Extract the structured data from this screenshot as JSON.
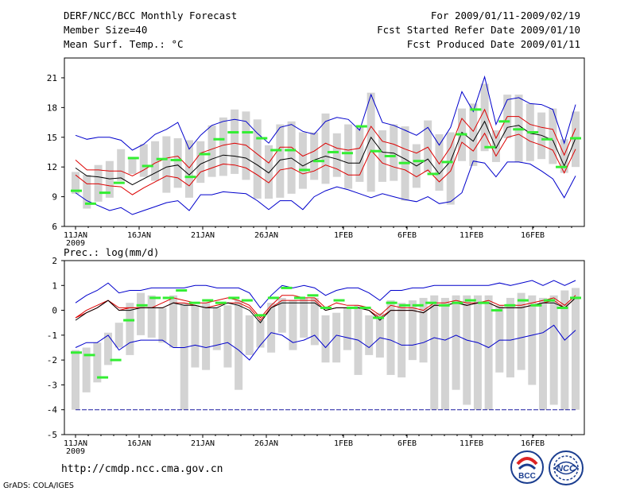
{
  "header": {
    "title": "DERF/NCC/BCC Monthly Forecast",
    "member": "Member Size=40",
    "variable": "Mean Surf. Temp.: °C",
    "period": "For 2009/01/11-2009/02/19",
    "started": "Fcst Started Refer Date 2009/01/10",
    "produced": "Fcst Produced Date 2009/01/11"
  },
  "footer": {
    "url": "http://cmdp.ncc.cma.gov.cn",
    "grads": "GrADS: COLA/IGES",
    "logo_bcc": "BCC",
    "logo_ncc": "NCC"
  },
  "colors": {
    "median": "#000000",
    "spread": "#dd0000",
    "extreme": "#0000cc",
    "box": "#d3d3d3",
    "marker": "#33ee33"
  },
  "chart_data": [
    {
      "type": "line",
      "title": "Mean Surf. Temp.: °C",
      "x_ticks": [
        "11JAN",
        "16JAN",
        "21JAN",
        "26JAN",
        "1FEB",
        "6FEB",
        "11FEB",
        "16FEB"
      ],
      "x_sub": "2009",
      "ylim": [
        6,
        23
      ],
      "yticks": [
        6,
        9,
        12,
        15,
        18,
        21
      ],
      "series": [
        {
          "name": "max",
          "values": [
            15.2,
            14.8,
            15.0,
            15.0,
            14.7,
            13.7,
            14.3,
            15.3,
            15.8,
            16.5,
            13.8,
            15.2,
            16.2,
            16.6,
            16.8,
            16.6,
            15.4,
            14.4,
            16.0,
            16.3,
            15.6,
            15.3,
            16.6,
            17.0,
            16.8,
            15.7,
            19.3,
            16.5,
            16.2,
            15.7,
            15.2,
            16.0,
            14.2,
            16.0,
            19.6,
            17.6,
            21.1,
            16.3,
            18.8,
            19.0,
            18.4,
            18.3,
            17.8,
            14.4,
            18.3
          ]
        },
        {
          "name": "upper",
          "values": [
            12.7,
            11.7,
            11.7,
            11.6,
            11.6,
            11.1,
            11.7,
            12.4,
            12.9,
            13.1,
            11.9,
            13.4,
            13.8,
            14.2,
            14.4,
            14.2,
            13.3,
            12.4,
            14.0,
            14.0,
            13.1,
            13.6,
            14.4,
            13.9,
            13.7,
            13.9,
            16.1,
            14.6,
            14.3,
            13.8,
            13.4,
            14.0,
            12.3,
            14.0,
            16.9,
            15.6,
            17.8,
            14.9,
            17.1,
            17.1,
            16.3,
            16.0,
            15.8,
            13.2,
            15.9
          ]
        },
        {
          "name": "median",
          "values": [
            11.9,
            11.1,
            11.0,
            10.8,
            10.9,
            10.2,
            10.8,
            11.4,
            12.0,
            12.2,
            11.2,
            12.3,
            12.8,
            13.2,
            13.1,
            12.9,
            12.2,
            11.4,
            12.7,
            12.9,
            12.1,
            12.7,
            13.1,
            12.8,
            12.4,
            12.4,
            15.0,
            13.5,
            13.4,
            12.8,
            12.1,
            12.8,
            11.3,
            12.6,
            15.5,
            14.6,
            16.6,
            13.9,
            16.0,
            16.2,
            15.4,
            15.2,
            14.7,
            12.1,
            14.9
          ]
        },
        {
          "name": "lower",
          "values": [
            11.2,
            10.3,
            10.3,
            10.1,
            10.0,
            9.2,
            9.9,
            10.5,
            11.1,
            10.9,
            10.1,
            11.5,
            11.9,
            12.3,
            12.2,
            11.9,
            11.2,
            10.4,
            11.7,
            11.9,
            11.3,
            11.6,
            12.2,
            11.8,
            11.2,
            11.2,
            13.7,
            12.4,
            12.0,
            11.7,
            11.0,
            11.7,
            10.5,
            11.6,
            14.5,
            13.6,
            15.4,
            13.1,
            15.0,
            15.3,
            14.6,
            14.2,
            13.7,
            11.4,
            13.8
          ]
        },
        {
          "name": "min",
          "values": [
            9.4,
            8.6,
            8.1,
            7.6,
            7.9,
            7.2,
            7.6,
            8.0,
            8.4,
            8.6,
            7.6,
            9.2,
            9.2,
            9.5,
            9.4,
            9.3,
            8.6,
            7.7,
            8.6,
            8.6,
            7.7,
            9.0,
            9.6,
            10.0,
            9.7,
            9.3,
            8.9,
            9.3,
            9.0,
            8.7,
            8.5,
            9.0,
            8.3,
            8.5,
            9.4,
            12.6,
            12.4,
            11.0,
            12.5,
            12.5,
            12.3,
            11.6,
            10.8,
            8.9,
            11.1
          ]
        },
        {
          "name": "box_high",
          "values": [
            11.5,
            11.2,
            12.2,
            12.6,
            13.8,
            12.9,
            14.3,
            14.6,
            15.1,
            14.9,
            14.7,
            14.6,
            16.2,
            17.0,
            17.8,
            17.6,
            16.8,
            14.2,
            16.3,
            16.6,
            15.5,
            15.5,
            17.4,
            15.4,
            16.3,
            16.2,
            19.5,
            15.7,
            16.3,
            16.1,
            14.3,
            16.7,
            15.3,
            15.5,
            17.9,
            18.4,
            20.4,
            15.7,
            19.3,
            19.3,
            18.4,
            17.5,
            17.9,
            14.8,
            17.6
          ]
        },
        {
          "name": "box_low",
          "values": [
            9.3,
            7.8,
            8.5,
            8.9,
            10.6,
            11.3,
            11.0,
            10.6,
            9.4,
            9.9,
            8.9,
            10.4,
            11.0,
            11.1,
            11.3,
            10.7,
            8.8,
            8.8,
            8.9,
            9.3,
            9.8,
            10.7,
            10.3,
            11.0,
            9.8,
            10.5,
            9.5,
            10.5,
            10.6,
            8.6,
            9.9,
            11.5,
            9.6,
            8.2,
            12.6,
            12.1,
            13.6,
            12.5,
            14.9,
            12.5,
            12.6,
            12.8,
            12.3,
            11.4,
            12.0
          ]
        },
        {
          "name": "obs_marker",
          "values": [
            9.6,
            8.3,
            9.4,
            10.4,
            12.9,
            12.1,
            12.8,
            12.7,
            11.0,
            13.3,
            14.8,
            15.5,
            15.5,
            14.9,
            13.7,
            13.7,
            11.7,
            12.6,
            13.5,
            13.4,
            16.1,
            13.6,
            13.1,
            12.4,
            12.6,
            11.3,
            12.5,
            15.3,
            17.8,
            14.0,
            16.6,
            15.8,
            15.5,
            14.8,
            12.0,
            14.9
          ]
        }
      ]
    },
    {
      "type": "line",
      "title": "Prec.: log(mm/d)",
      "x_ticks": [
        "11JAN",
        "16JAN",
        "21JAN",
        "26JAN",
        "1FEB",
        "6FEB",
        "11FEB",
        "16FEB"
      ],
      "x_sub": "2009",
      "ylim": [
        -5,
        2
      ],
      "yticks": [
        -5,
        -4,
        -3,
        -2,
        -1,
        0,
        1,
        2
      ],
      "series": [
        {
          "name": "max",
          "values": [
            0.3,
            0.6,
            0.8,
            1.1,
            0.7,
            0.8,
            0.8,
            0.9,
            0.9,
            0.9,
            0.9,
            1.0,
            1.0,
            0.9,
            0.9,
            0.9,
            0.7,
            0.1,
            0.6,
            1.0,
            0.9,
            1.0,
            0.9,
            0.6,
            0.8,
            0.9,
            0.9,
            0.7,
            0.4,
            0.8,
            0.8,
            0.9,
            0.9,
            1.0,
            1.0,
            1.0,
            1.0,
            1.0,
            1.0,
            1.1,
            1.0,
            1.1,
            1.2,
            1.0,
            1.2,
            1.0,
            1.2
          ]
        },
        {
          "name": "upper",
          "values": [
            -0.3,
            0.0,
            0.2,
            0.4,
            0.1,
            0.1,
            0.1,
            0.1,
            0.3,
            0.5,
            0.4,
            0.3,
            0.3,
            0.4,
            0.5,
            0.4,
            0.2,
            -0.3,
            0.2,
            0.6,
            0.6,
            0.5,
            0.5,
            0.1,
            0.3,
            0.2,
            0.2,
            0.1,
            -0.2,
            0.2,
            0.1,
            0.1,
            0.0,
            0.3,
            0.3,
            0.4,
            0.3,
            0.3,
            0.4,
            0.2,
            0.2,
            0.2,
            0.3,
            0.4,
            0.5,
            0.2,
            0.6
          ]
        },
        {
          "name": "median",
          "values": [
            -0.4,
            -0.1,
            0.1,
            0.4,
            0.0,
            0.0,
            0.1,
            0.1,
            0.1,
            0.3,
            0.2,
            0.2,
            0.1,
            0.1,
            0.3,
            0.2,
            0.0,
            -0.5,
            0.1,
            0.3,
            0.3,
            0.3,
            0.3,
            0.0,
            0.1,
            0.1,
            0.1,
            0.0,
            -0.4,
            0.0,
            0.0,
            0.0,
            -0.1,
            0.2,
            0.2,
            0.3,
            0.2,
            0.3,
            0.3,
            0.1,
            0.1,
            0.1,
            0.2,
            0.3,
            0.3,
            0.1,
            0.5
          ]
        },
        {
          "name": "lower",
          "values": [
            -0.3,
            -0.1,
            0.1,
            0.4,
            0.0,
            0.1,
            0.1,
            0.1,
            0.1,
            0.3,
            0.3,
            0.2,
            0.1,
            0.2,
            0.3,
            0.3,
            0.1,
            -0.4,
            0.1,
            0.4,
            0.4,
            0.4,
            0.4,
            0.0,
            0.1,
            0.1,
            0.1,
            0.0,
            -0.3,
            0.0,
            0.0,
            0.0,
            -0.1,
            0.2,
            0.2,
            0.3,
            0.2,
            0.3,
            0.3,
            0.1,
            0.1,
            0.1,
            0.2,
            0.3,
            0.4,
            0.1,
            0.5
          ]
        },
        {
          "name": "min",
          "values": [
            -1.5,
            -1.3,
            -1.3,
            -1.0,
            -1.6,
            -1.3,
            -1.2,
            -1.2,
            -1.2,
            -1.5,
            -1.5,
            -1.4,
            -1.5,
            -1.4,
            -1.3,
            -1.6,
            -2.0,
            -1.4,
            -0.9,
            -1.0,
            -1.3,
            -1.2,
            -1.0,
            -1.5,
            -1.0,
            -1.1,
            -1.2,
            -1.5,
            -1.1,
            -1.2,
            -1.4,
            -1.4,
            -1.3,
            -1.1,
            -1.2,
            -1.0,
            -1.2,
            -1.3,
            -1.5,
            -1.2,
            -1.2,
            -1.1,
            -1.0,
            -0.9,
            -0.6,
            -1.2,
            -0.8
          ]
        },
        {
          "name": "box_high",
          "values": [
            -1.6,
            -1.5,
            -1.3,
            -0.9,
            -0.5,
            0.3,
            0.7,
            0.6,
            0.1,
            0.6,
            0.3,
            0.2,
            0.3,
            0.1,
            0.2,
            0.4,
            -0.2,
            -0.4,
            0.3,
            0.5,
            0.4,
            0.5,
            0.5,
            -0.2,
            -0.1,
            0.1,
            0.2,
            -0.2,
            -0.1,
            0.4,
            0.3,
            0.4,
            0.5,
            0.6,
            0.5,
            0.6,
            0.6,
            0.6,
            0.6,
            0.2,
            0.5,
            0.7,
            0.6,
            0.5,
            0.6,
            0.8,
            0.9
          ]
        },
        {
          "name": "box_low",
          "values": [
            -4.0,
            -3.3,
            -2.9,
            -2.2,
            -1.5,
            -1.8,
            -1.0,
            -1.1,
            -1.3,
            -1.5,
            -4.0,
            -2.3,
            -2.4,
            -1.6,
            -2.3,
            -3.2,
            -1.8,
            -1.5,
            -1.7,
            -0.9,
            -1.6,
            -1.1,
            -1.4,
            -2.1,
            -2.1,
            -1.6,
            -2.6,
            -1.8,
            -1.9,
            -2.6,
            -2.7,
            -2.0,
            -2.1,
            -4.0,
            -4.0,
            -3.2,
            -3.8,
            -4.0,
            -4.0,
            -2.5,
            -2.7,
            -2.4,
            -3.0,
            -4.0,
            -3.8,
            -4.0,
            -4.0
          ]
        },
        {
          "name": "floor",
          "values": [
            -4.0,
            -4.0
          ]
        },
        {
          "name": "obs_marker",
          "values": [
            -1.7,
            -1.8,
            -2.7,
            -2.0,
            -0.4,
            0.2,
            0.5,
            0.5,
            0.8,
            0.3,
            0.4,
            0.3,
            0.5,
            0.4,
            -0.2,
            0.5,
            0.9,
            0.5,
            0.6,
            0.1,
            0.4,
            0.1,
            0.1,
            -0.3,
            0.3,
            0.2,
            0.2,
            0.3,
            0.2,
            0.3,
            0.4,
            0.3,
            0.0,
            0.2,
            0.4,
            0.2,
            0.4,
            0.1,
            0.5
          ]
        }
      ]
    }
  ]
}
